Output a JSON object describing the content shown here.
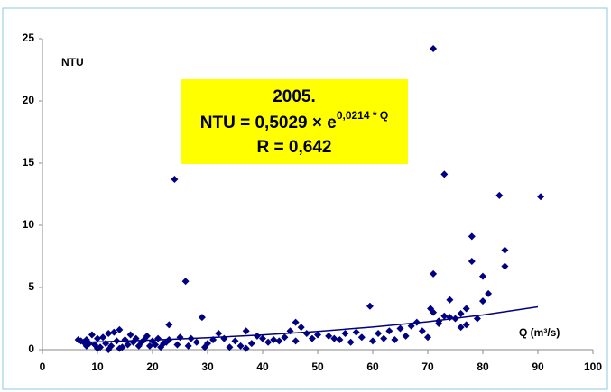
{
  "chart_data": {
    "type": "scatter",
    "ylabel": "NTU",
    "xlabel": "Q (m³/s)",
    "annotation": {
      "title": "2005.",
      "formula": "NTU = 0,5029 × e",
      "exponent": "0,0214 * Q",
      "r": "R = 0,642"
    },
    "xlim": [
      0,
      100
    ],
    "ylim": [
      0,
      25
    ],
    "xticks": [
      0,
      10,
      20,
      30,
      40,
      50,
      60,
      70,
      80,
      90,
      100
    ],
    "yticks": [
      0,
      5,
      10,
      15,
      20,
      25
    ],
    "grid": false,
    "series": [
      {
        "color": "#000080",
        "marker": "diamond",
        "x": [
          24,
          26,
          23,
          29,
          71,
          73,
          83,
          90.5,
          78,
          84,
          78,
          84,
          71,
          80,
          81,
          80,
          74,
          59.5,
          70.5,
          71,
          77,
          76,
          73,
          75,
          68,
          72,
          46,
          45,
          47,
          37,
          32,
          50,
          55,
          57,
          61,
          63,
          65,
          67,
          69,
          76,
          77,
          79,
          62,
          66,
          60,
          54,
          58,
          52,
          49,
          44,
          42,
          40,
          38,
          36,
          35,
          33,
          31,
          30,
          28,
          27,
          25,
          23,
          22,
          21,
          20,
          19,
          18,
          17,
          16,
          15,
          14,
          13,
          12,
          11,
          10,
          9,
          8,
          7,
          6.5,
          7.5,
          8.5,
          9.5,
          10.5,
          11.5,
          12.5,
          13.5,
          14.5,
          15.5,
          16.5,
          17.5,
          18.5,
          19.5,
          20.5,
          21.5,
          22.5,
          24.5,
          26.5,
          29.5,
          34,
          37,
          39,
          41,
          43,
          48,
          53,
          56,
          64,
          70,
          72,
          74,
          10,
          12,
          14,
          8,
          46
        ],
        "values": [
          13.7,
          5.5,
          2.0,
          2.6,
          24.2,
          14.1,
          12.4,
          12.3,
          9.1,
          8.0,
          7.1,
          6.7,
          6.1,
          5.9,
          4.5,
          3.9,
          4.0,
          3.5,
          3.3,
          3.0,
          3.3,
          2.9,
          2.7,
          2.5,
          2.2,
          2.1,
          2.2,
          1.5,
          1.8,
          1.5,
          1.3,
          1.2,
          1.3,
          1.4,
          1.3,
          1.5,
          1.7,
          1.9,
          1.5,
          1.8,
          2.0,
          2.5,
          0.9,
          1.1,
          0.7,
          0.8,
          1.0,
          1.1,
          0.9,
          1.0,
          0.8,
          0.9,
          0.5,
          0.3,
          0.7,
          0.9,
          0.8,
          0.5,
          0.6,
          0.9,
          1.0,
          0.8,
          0.5,
          0.9,
          0.7,
          1.1,
          0.6,
          0.9,
          1.2,
          0.8,
          1.6,
          1.4,
          1.3,
          1.0,
          0.9,
          1.2,
          0.8,
          0.7,
          0.8,
          0.6,
          0.5,
          0.4,
          0.2,
          0.5,
          0.3,
          0.7,
          0.2,
          0.4,
          0.6,
          0.3,
          0.8,
          0.3,
          0.4,
          0.2,
          0.6,
          0.4,
          0.3,
          0.2,
          0.2,
          0.1,
          1.1,
          0.6,
          0.7,
          1.3,
          0.9,
          0.6,
          0.8,
          1.0,
          2.3,
          2.6,
          0.1,
          0.0,
          0.1,
          0.3,
          0.7
        ]
      },
      {
        "type": "line",
        "color": "#000080",
        "x": [
          7,
          20,
          30,
          40,
          50,
          60,
          70,
          80,
          90
        ],
        "values": [
          0.58,
          0.77,
          0.96,
          1.19,
          1.47,
          1.82,
          2.25,
          2.79,
          3.44
        ]
      }
    ]
  }
}
